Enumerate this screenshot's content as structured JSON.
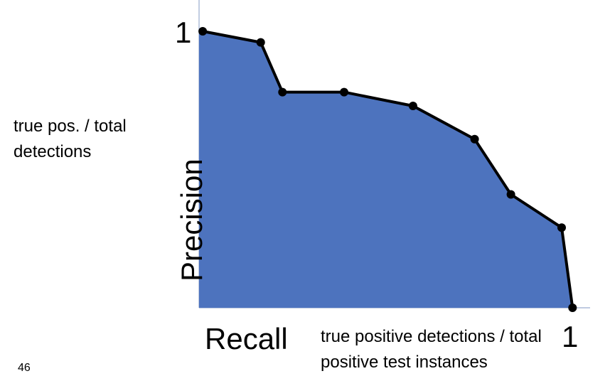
{
  "chart_data": {
    "type": "area",
    "title": "",
    "xlabel": "Recall",
    "ylabel": "Precision",
    "x_note": "true positive detections / total positive test instances",
    "y_note": "true pos. / total detections",
    "x_tick_label": "1",
    "y_tick_label": "1",
    "xlim": [
      0,
      1
    ],
    "ylim": [
      0,
      1
    ],
    "grid": false,
    "x": [
      0.01,
      0.17,
      0.23,
      0.4,
      0.59,
      0.76,
      0.86,
      1.0,
      1.03
    ],
    "y": [
      1.0,
      0.96,
      0.78,
      0.78,
      0.73,
      0.61,
      0.41,
      0.29,
      0.0
    ],
    "fill_color": "#4d73be",
    "line_color": "#000000",
    "axis_color": "#9aaccf"
  },
  "slide": {
    "page_number": "46"
  }
}
